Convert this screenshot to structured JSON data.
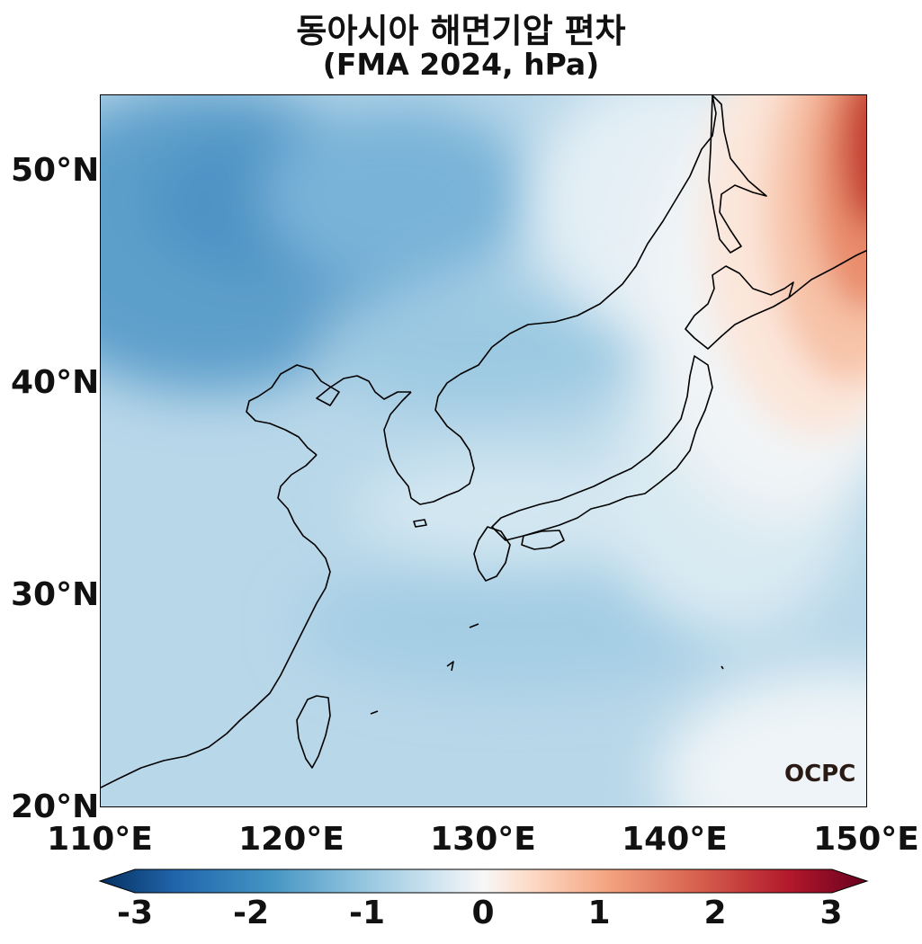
{
  "title": "동아시아 해면기압 편차",
  "subtitle": "(FMA 2024, hPa)",
  "axes": {
    "lat_ticks": [
      "50°N",
      "40°N",
      "30°N",
      "20°N"
    ],
    "lon_ticks": [
      "110°E",
      "120°E",
      "130°E",
      "140°E",
      "150°E"
    ]
  },
  "colorbar": {
    "labels": [
      "-3",
      "-2",
      "-1",
      "0",
      "1",
      "2",
      "3"
    ],
    "colors": [
      "#053061",
      "#2166ac",
      "#4393c3",
      "#92c5de",
      "#d1e5f0",
      "#f7f7f7",
      "#fddbc7",
      "#f4a582",
      "#d6604d",
      "#b2182b",
      "#67001f"
    ]
  },
  "logo": "OCPC"
}
